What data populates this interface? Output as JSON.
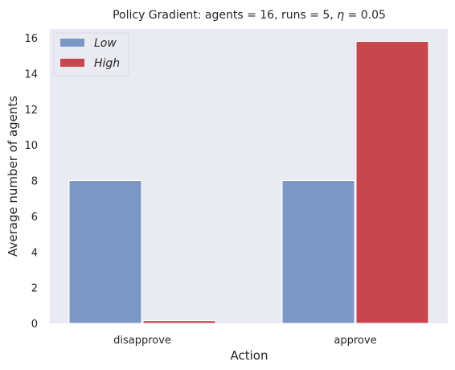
{
  "chart_data": {
    "type": "bar",
    "title_prefix": "Policy Gradient: agents = 16, runs = 5, ",
    "title_eta_symbol": "η",
    "title_suffix": " = 0.05",
    "xlabel": "Action",
    "ylabel": "Average number of agents",
    "categories": [
      "disapprove",
      "approve"
    ],
    "series": [
      {
        "name": "Low",
        "values": [
          8.0,
          8.0
        ],
        "color": "#7b97c3"
      },
      {
        "name": "High",
        "values": [
          0.15,
          15.8
        ],
        "color": "#c8464e"
      }
    ],
    "ylim": [
      0,
      16.5
    ],
    "yticks": [
      0,
      2,
      4,
      6,
      8,
      10,
      12,
      14,
      16
    ],
    "ytick_labels": [
      "0",
      "2",
      "4",
      "6",
      "8",
      "10",
      "12",
      "14",
      "16"
    ],
    "grid": false,
    "legend_position": "top-left",
    "plot_background": "#eaeaf2"
  }
}
